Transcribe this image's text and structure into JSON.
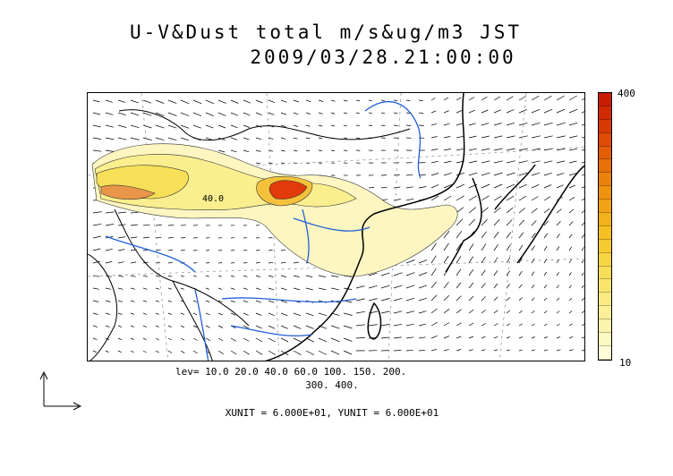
{
  "title": {
    "line1": "U-V&Dust total m/s&ug/m3 JST",
    "line2": "2009/03/28.21:00:00"
  },
  "colorbar": {
    "max_label": "400",
    "min_label": "10",
    "colors": [
      "#fefdd8",
      "#fdf9c2",
      "#fcf4ad",
      "#fbef98",
      "#faea83",
      "#f9e46e",
      "#f8dd59",
      "#f7d544",
      "#f6cb30",
      "#f5bf22",
      "#f3b21a",
      "#f1a314",
      "#ee930f",
      "#eb820b",
      "#e77008",
      "#e35e06",
      "#de4c05",
      "#d83a04",
      "#d12a03",
      "#c91c03"
    ]
  },
  "map": {
    "contour_labels": [
      "40.0"
    ],
    "colors": {
      "rivers": "#1f5fd8",
      "coast": "#000000",
      "borders": "#000000",
      "grid": "#888888",
      "wind_vectors": "#000000"
    }
  },
  "captions": {
    "levels_line1": "lev= 10.0 20.0 40.0 60.0 100. 150. 200.",
    "levels_line2": "300. 400.",
    "units": "XUNIT = 6.000E+01, YUNIT = 6.000E+01"
  },
  "icons": {
    "reference_vector": "ref-vector-icon"
  }
}
